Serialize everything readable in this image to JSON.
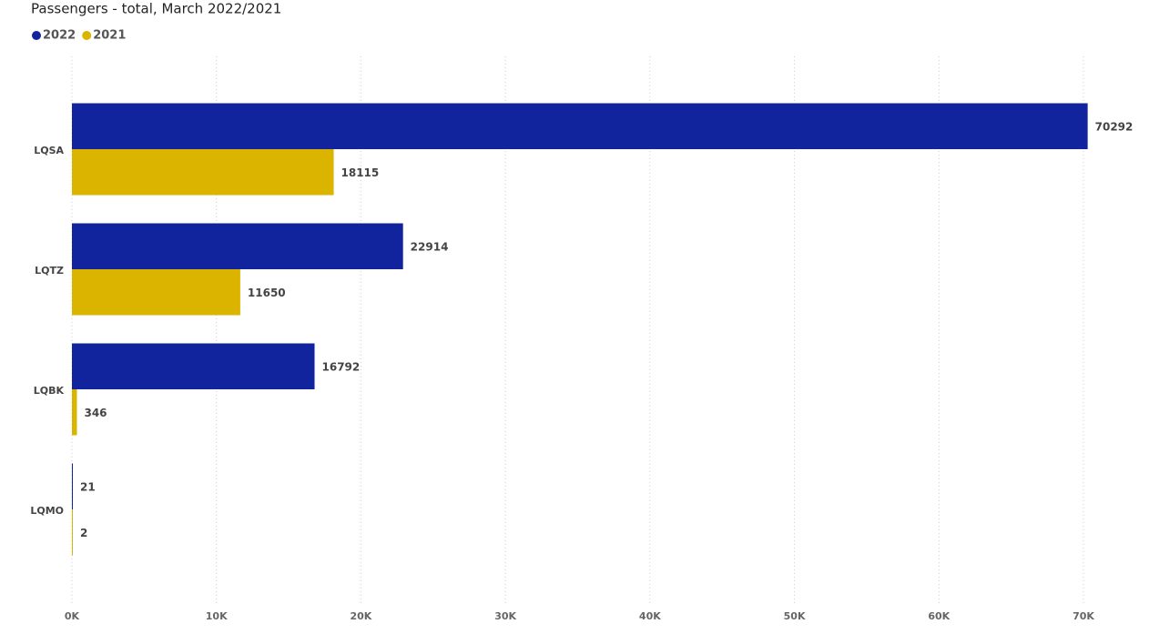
{
  "chart_data": {
    "type": "bar",
    "orientation": "horizontal",
    "title": "Passengers - total, March 2022/2021",
    "categories": [
      "LQSA",
      "LQTZ",
      "LQBK",
      "LQMO"
    ],
    "series": [
      {
        "name": "2022",
        "color": "#12239e",
        "values": [
          70292,
          22914,
          16792,
          21
        ]
      },
      {
        "name": "2021",
        "color": "#dbb400",
        "values": [
          18115,
          11650,
          346,
          2
        ]
      }
    ],
    "xlim": [
      0,
      70000
    ],
    "xticks": [
      {
        "value": 0,
        "label": "0K"
      },
      {
        "value": 10000,
        "label": "10K"
      },
      {
        "value": 20000,
        "label": "20K"
      },
      {
        "value": 30000,
        "label": "30K"
      },
      {
        "value": 40000,
        "label": "40K"
      },
      {
        "value": 50000,
        "label": "50K"
      },
      {
        "value": 60000,
        "label": "60K"
      },
      {
        "value": 70000,
        "label": "70K"
      }
    ],
    "grid": true,
    "legend": "top-left"
  }
}
